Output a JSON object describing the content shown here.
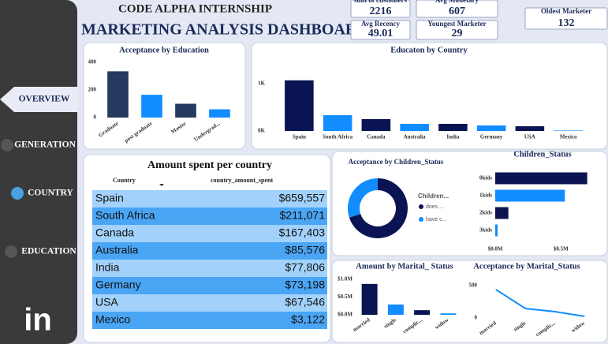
{
  "header": {
    "subtitle": "CODE ALPHA INTERNSHIP",
    "title": "MARKETING ANALYSIS DASHBOARD"
  },
  "kpis": [
    {
      "label": "sum of customers",
      "value": "2216"
    },
    {
      "label": "Avg Monetary",
      "value": "607"
    },
    {
      "label": "Avg Recency",
      "value": "49.01"
    },
    {
      "label": "Youngest Marketer",
      "value": "29"
    },
    {
      "label": "Oldest Marketer",
      "value": "132"
    }
  ],
  "sidebar": {
    "items": [
      "OVERVIEW",
      "GENERATION",
      "COUNTRY",
      "EDUCATION"
    ],
    "logo": "in"
  },
  "table": {
    "title": "Amount spent per country",
    "columns": [
      "Country",
      "country_amount_spent"
    ],
    "rows": [
      [
        "Spain",
        "$659,557"
      ],
      [
        "South Africa",
        "$211,071"
      ],
      [
        "Canada",
        "$167,403"
      ],
      [
        "Australia",
        "$85,576"
      ],
      [
        "India",
        "$77,806"
      ],
      [
        "Germany",
        "$73,198"
      ],
      [
        "USA",
        "$67,546"
      ],
      [
        "Mexico",
        "$3,122"
      ]
    ]
  },
  "chart_data": [
    {
      "type": "bar",
      "title": "Acceptance by Education",
      "categories": [
        "Graduate",
        "post graduate",
        "Master",
        "Undergrad..."
      ],
      "values": [
        335,
        165,
        100,
        60
      ],
      "colors": [
        "#243a5e",
        "#118dff",
        "#243a5e",
        "#118dff"
      ],
      "ylim": [
        0,
        400
      ],
      "yticks": [
        0,
        200,
        400
      ]
    },
    {
      "type": "bar",
      "title": "Educaton by Country",
      "categories": [
        "Spain",
        "South Africa",
        "Canada",
        "Australia",
        "India",
        "Germany",
        "USA",
        "Mexico"
      ],
      "values": [
        1070,
        333,
        250,
        150,
        150,
        117,
        100,
        10
      ],
      "colors": [
        "#0b1452",
        "#118dff",
        "#0b1452",
        "#118dff",
        "#0b1452",
        "#118dff",
        "#0b1452",
        "#118dff"
      ],
      "ylim": [
        0,
        1200
      ],
      "yticks": [
        {
          "value": 0,
          "label": "0K"
        },
        {
          "value": 1000,
          "label": "1K"
        }
      ]
    },
    {
      "type": "donut",
      "title": "Acceptance by Children_Status",
      "legend_title": "Children...",
      "categories": [
        "does ...",
        "have c..."
      ],
      "values": [
        70,
        30
      ],
      "colors": [
        "#0b1452",
        "#118dff"
      ]
    },
    {
      "type": "hbar",
      "title": "Children_Status",
      "categories": [
        "0kids",
        "1kids",
        "2kids",
        "3kids"
      ],
      "values": [
        700000,
        530000,
        100000,
        18000
      ],
      "colors": [
        "#0b1452",
        "#118dff",
        "#0b1452",
        "#118dff"
      ],
      "xlim": [
        0,
        750000
      ],
      "xticks": [
        {
          "value": 0,
          "label": "$0.0M"
        },
        {
          "value": 500000,
          "label": "$0.5M"
        }
      ]
    },
    {
      "type": "bar",
      "title": "Amount by Marital_ Status",
      "categories": [
        "married",
        "single",
        "complic...",
        "widow"
      ],
      "values": [
        870000,
        290000,
        130000,
        40000
      ],
      "colors": [
        "#0b1452",
        "#118dff",
        "#0b1452",
        "#118dff"
      ],
      "ylim": [
        0,
        1000000
      ],
      "yticks": [
        {
          "value": 0,
          "label": "$0.0M"
        },
        {
          "value": 500000,
          "label": "$0.5M"
        },
        {
          "value": 1000000,
          "label": "$1.0M"
        }
      ]
    },
    {
      "type": "line",
      "title": "Acceptance by Marital_Status",
      "categories": [
        "married",
        "single",
        "complic...",
        "widow"
      ],
      "values": [
        440,
        146,
        98,
        24
      ],
      "color": "#118dff",
      "ylim": [
        0,
        500
      ],
      "yticks": [
        0,
        500
      ]
    }
  ]
}
